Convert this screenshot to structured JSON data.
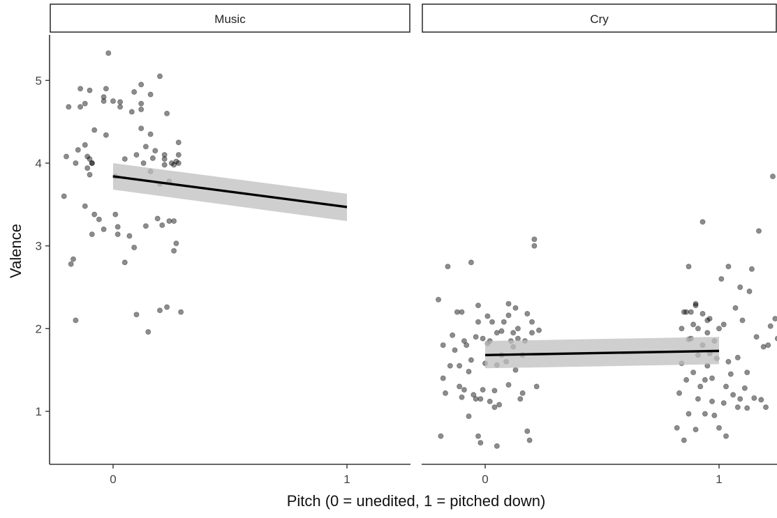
{
  "chart_data": {
    "type": "scatter",
    "xlabel": "Pitch (0 = unedited, 1 = pitched down)",
    "ylabel": "Valence",
    "xlim": [
      -0.27,
      1.27
    ],
    "ylim": [
      0.4,
      5.6
    ],
    "x_ticks": [
      "0",
      "1"
    ],
    "y_ticks": [
      "1",
      "2",
      "3",
      "4",
      "5"
    ],
    "grid": false,
    "point_color": "#000000",
    "line_color": "#000000",
    "band_color": "#bfbfbf",
    "panels": [
      {
        "strip_label": "Music",
        "fit": {
          "x0": 0,
          "y0": 3.84,
          "x1": 1,
          "y1": 3.47,
          "band0": [
            3.68,
            4.0
          ],
          "band1": [
            3.3,
            3.63
          ]
        },
        "points": [
          [
            -0.2,
            4.08
          ],
          [
            -0.19,
            4.68
          ],
          [
            -0.16,
            4.0
          ],
          [
            -0.15,
            4.16
          ],
          [
            -0.14,
            4.9
          ],
          [
            -0.14,
            4.68
          ],
          [
            -0.12,
            4.72
          ],
          [
            -0.12,
            4.22
          ],
          [
            -0.11,
            3.94
          ],
          [
            -0.11,
            4.08
          ],
          [
            -0.1,
            4.88
          ],
          [
            -0.1,
            4.05
          ],
          [
            -0.1,
            3.86
          ],
          [
            -0.09,
            4.0
          ],
          [
            -0.09,
            3.14
          ],
          [
            -0.08,
            4.4
          ],
          [
            -0.08,
            3.38
          ],
          [
            -0.06,
            3.32
          ],
          [
            -0.04,
            3.2
          ],
          [
            -0.04,
            4.75
          ],
          [
            -0.04,
            4.8
          ],
          [
            -0.03,
            4.34
          ],
          [
            -0.03,
            4.9
          ],
          [
            -0.02,
            5.33
          ],
          [
            0.0,
            4.75
          ],
          [
            0.01,
            3.84
          ],
          [
            0.01,
            3.38
          ],
          [
            0.02,
            3.23
          ],
          [
            0.02,
            3.14
          ],
          [
            0.03,
            4.68
          ],
          [
            0.03,
            4.74
          ],
          [
            0.05,
            2.8
          ],
          [
            0.05,
            4.05
          ],
          [
            0.07,
            3.12
          ],
          [
            0.08,
            4.62
          ],
          [
            0.09,
            2.98
          ],
          [
            0.09,
            4.86
          ],
          [
            0.1,
            2.17
          ],
          [
            0.1,
            4.1
          ],
          [
            0.12,
            4.42
          ],
          [
            0.12,
            4.95
          ],
          [
            0.12,
            4.65
          ],
          [
            0.12,
            4.72
          ],
          [
            0.13,
            4.0
          ],
          [
            0.14,
            4.2
          ],
          [
            0.14,
            3.24
          ],
          [
            0.15,
            1.96
          ],
          [
            0.16,
            4.35
          ],
          [
            0.16,
            3.9
          ],
          [
            0.16,
            4.83
          ],
          [
            0.18,
            4.15
          ],
          [
            0.19,
            3.33
          ],
          [
            0.2,
            3.75
          ],
          [
            0.2,
            5.05
          ],
          [
            0.2,
            2.22
          ],
          [
            0.22,
            4.1
          ],
          [
            0.22,
            4.05
          ],
          [
            0.22,
            3.98
          ],
          [
            0.23,
            2.26
          ],
          [
            0.23,
            4.6
          ],
          [
            0.24,
            3.3
          ],
          [
            0.25,
            4.0
          ],
          [
            0.26,
            3.3
          ],
          [
            0.26,
            2.94
          ],
          [
            0.27,
            3.03
          ],
          [
            0.28,
            4.25
          ],
          [
            0.28,
            4.1
          ],
          [
            0.28,
            4.0
          ],
          [
            0.29,
            2.2
          ],
          [
            -0.21,
            3.6
          ],
          [
            -0.18,
            2.78
          ],
          [
            -0.17,
            2.84
          ],
          [
            -0.16,
            2.1
          ],
          [
            -0.12,
            3.48
          ],
          [
            -0.09,
            4.0
          ],
          [
            0.17,
            4.06
          ],
          [
            0.24,
            3.78
          ],
          [
            0.26,
            3.98
          ],
          [
            0.27,
            4.02
          ],
          [
            0.21,
            3.25
          ]
        ]
      },
      {
        "strip_label": "Cry",
        "fit": {
          "x0": 0,
          "y0": 1.68,
          "x1": 1,
          "y1": 1.73,
          "band0": [
            1.52,
            1.85
          ],
          "band1": [
            1.57,
            1.9
          ]
        },
        "points": [
          [
            -0.2,
            2.35
          ],
          [
            -0.19,
            0.7
          ],
          [
            -0.18,
            1.4
          ],
          [
            -0.18,
            1.8
          ],
          [
            -0.17,
            1.22
          ],
          [
            -0.16,
            2.75
          ],
          [
            -0.15,
            1.55
          ],
          [
            -0.14,
            1.92
          ],
          [
            -0.13,
            1.74
          ],
          [
            -0.12,
            2.2
          ],
          [
            -0.11,
            1.55
          ],
          [
            -0.11,
            1.3
          ],
          [
            -0.1,
            2.2
          ],
          [
            -0.1,
            1.17
          ],
          [
            -0.09,
            1.26
          ],
          [
            -0.09,
            1.85
          ],
          [
            -0.08,
            1.8
          ],
          [
            -0.07,
            0.94
          ],
          [
            -0.06,
            1.62
          ],
          [
            -0.06,
            2.8
          ],
          [
            -0.05,
            1.2
          ],
          [
            -0.04,
            1.9
          ],
          [
            -0.04,
            1.15
          ],
          [
            -0.03,
            2.08
          ],
          [
            -0.03,
            2.28
          ],
          [
            -0.03,
            0.7
          ],
          [
            -0.02,
            1.15
          ],
          [
            -0.02,
            0.62
          ],
          [
            -0.01,
            1.26
          ],
          [
            0.0,
            1.58
          ],
          [
            0.01,
            2.15
          ],
          [
            0.01,
            1.82
          ],
          [
            0.02,
            1.12
          ],
          [
            0.02,
            1.85
          ],
          [
            0.03,
            2.08
          ],
          [
            0.04,
            1.25
          ],
          [
            0.04,
            1.05
          ],
          [
            0.05,
            0.58
          ],
          [
            0.05,
            1.95
          ],
          [
            0.06,
            1.08
          ],
          [
            0.07,
            1.97
          ],
          [
            0.07,
            1.68
          ],
          [
            0.08,
            2.08
          ],
          [
            0.09,
            1.6
          ],
          [
            0.1,
            1.32
          ],
          [
            0.1,
            2.3
          ],
          [
            0.1,
            2.16
          ],
          [
            0.11,
            1.85
          ],
          [
            0.12,
            1.95
          ],
          [
            0.13,
            1.5
          ],
          [
            0.13,
            2.25
          ],
          [
            0.14,
            1.88
          ],
          [
            0.14,
            2.0
          ],
          [
            0.15,
            1.15
          ],
          [
            0.16,
            1.68
          ],
          [
            0.16,
            1.22
          ],
          [
            0.17,
            1.85
          ],
          [
            0.18,
            0.76
          ],
          [
            0.18,
            2.18
          ],
          [
            0.19,
            0.65
          ],
          [
            0.2,
            2.08
          ],
          [
            0.2,
            1.95
          ],
          [
            0.21,
            3.08
          ],
          [
            0.21,
            3.0
          ],
          [
            0.22,
            1.3
          ],
          [
            0.23,
            1.98
          ],
          [
            0.82,
            0.8
          ],
          [
            0.83,
            1.22
          ],
          [
            0.84,
            1.58
          ],
          [
            0.84,
            2.0
          ],
          [
            0.85,
            0.65
          ],
          [
            0.85,
            2.2
          ],
          [
            0.86,
            1.38
          ],
          [
            0.86,
            2.2
          ],
          [
            0.87,
            1.87
          ],
          [
            0.87,
            2.75
          ],
          [
            0.87,
            0.97
          ],
          [
            0.88,
            1.88
          ],
          [
            0.88,
            2.2
          ],
          [
            0.89,
            1.47
          ],
          [
            0.89,
            2.05
          ],
          [
            0.9,
            0.78
          ],
          [
            0.9,
            2.28
          ],
          [
            0.91,
            1.15
          ],
          [
            0.91,
            1.68
          ],
          [
            0.91,
            2.0
          ],
          [
            0.92,
            1.3
          ],
          [
            0.93,
            1.8
          ],
          [
            0.93,
            2.18
          ],
          [
            0.93,
            3.29
          ],
          [
            0.94,
            1.38
          ],
          [
            0.94,
            0.97
          ],
          [
            0.95,
            2.1
          ],
          [
            0.95,
            1.55
          ],
          [
            0.96,
            2.12
          ],
          [
            0.96,
            1.7
          ],
          [
            0.97,
            1.4
          ],
          [
            0.97,
            1.12
          ],
          [
            0.98,
            0.95
          ],
          [
            0.98,
            1.85
          ],
          [
            0.99,
            1.64
          ],
          [
            1.0,
            0.8
          ],
          [
            1.0,
            2.0
          ],
          [
            1.02,
            1.1
          ],
          [
            1.02,
            2.05
          ],
          [
            1.03,
            0.7
          ],
          [
            1.04,
            2.75
          ],
          [
            1.04,
            1.6
          ],
          [
            1.05,
            1.45
          ],
          [
            1.06,
            1.2
          ],
          [
            1.07,
            2.25
          ],
          [
            1.08,
            1.05
          ],
          [
            1.09,
            1.15
          ],
          [
            1.09,
            2.5
          ],
          [
            1.1,
            2.1
          ],
          [
            1.11,
            1.28
          ],
          [
            1.12,
            1.04
          ],
          [
            1.13,
            2.45
          ],
          [
            1.14,
            2.72
          ],
          [
            1.15,
            1.16
          ],
          [
            1.17,
            3.18
          ],
          [
            1.18,
            1.14
          ],
          [
            1.19,
            1.78
          ],
          [
            1.2,
            1.05
          ],
          [
            1.21,
            1.8
          ],
          [
            1.22,
            2.03
          ],
          [
            1.23,
            3.84
          ],
          [
            1.24,
            2.12
          ],
          [
            1.25,
            1.88
          ],
          [
            1.01,
            2.6
          ],
          [
            1.08,
            1.65
          ],
          [
            1.12,
            1.47
          ],
          [
            1.16,
            1.9
          ],
          [
            0.05,
            1.56
          ],
          [
            -0.07,
            1.48
          ],
          [
            0.12,
            1.78
          ],
          [
            -0.01,
            1.88
          ],
          [
            0.95,
            1.95
          ],
          [
            1.03,
            1.3
          ],
          [
            0.9,
            2.3
          ]
        ]
      }
    ]
  }
}
